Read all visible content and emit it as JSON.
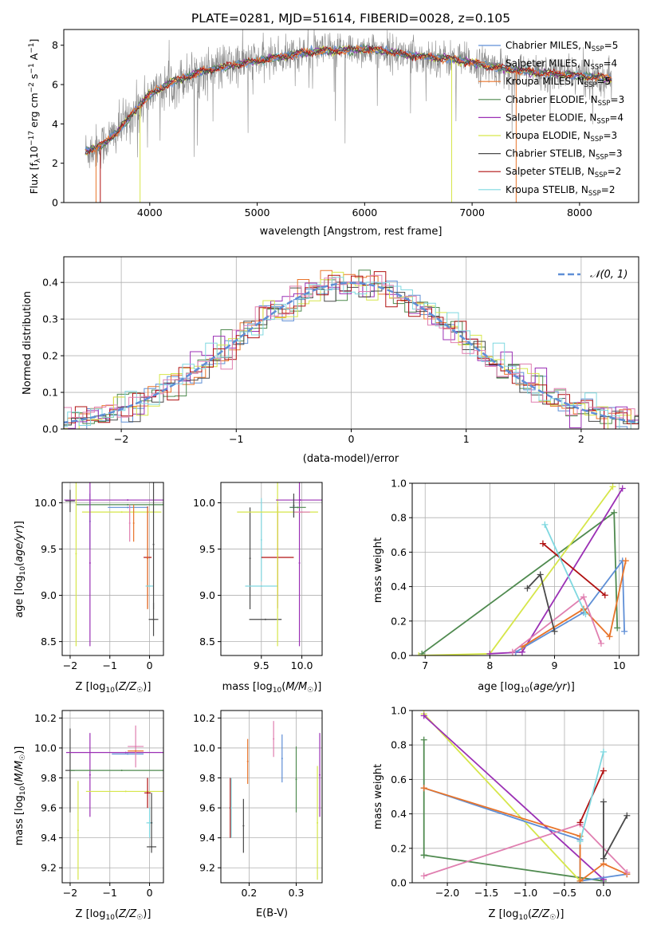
{
  "colors": {
    "chabrier_miles": "#5f8fd6",
    "salpeter_miles": "#8a8a8a",
    "kroupa_miles": "#e8742a",
    "chabrier_elodie": "#4f8a4f",
    "salpeter_elodie": "#9b30b5",
    "kroupa_elodie": "#d6e64a",
    "chabrier_stelib": "#4a4a4a",
    "salpeter_stelib": "#b01010",
    "kroupa_stelib": "#7fd8e0",
    "pink": "#e07fb0",
    "normal_curve": "#5f8fd6"
  },
  "chart_data": [
    {
      "id": "spectrum",
      "type": "line",
      "title": "PLATE=0281, MJD=51614, FIBERID=0028, z=0.105",
      "xlabel": "wavelength [Angstrom, rest frame]",
      "ylabel": "Flux [f_λ10^-17 erg cm^-2 s^-1 A^-1]",
      "xlim": [
        3200,
        8550
      ],
      "ylim": [
        0,
        8.8
      ],
      "xticks": [
        "4000",
        "5000",
        "6000",
        "7000",
        "8000"
      ],
      "yticks": [
        "0",
        "2",
        "4",
        "6",
        "8"
      ],
      "legend_position": "top-right",
      "legend": [
        "Chabrier MILES, N_SSP=5",
        "Salpeter MILES, N_SSP=4",
        "Kroupa MILES, N_SSP=5",
        "Chabrier ELODIE, N_SSP=3",
        "Salpeter ELODIE, N_SSP=4",
        "Kroupa ELODIE, N_SSP=3",
        "Chabrier STELIB, N_SSP=3",
        "Salpeter STELIB, N_SSP=2",
        "Kroupa STELIB, N_SSP=2"
      ],
      "continuum": {
        "x": [
          3400,
          3550,
          3700,
          3850,
          4000,
          4200,
          4400,
          4600,
          4800,
          5000,
          5200,
          5400,
          5600,
          5800,
          6000,
          6200,
          6400,
          6600,
          6800,
          7000,
          7200,
          7400,
          7600,
          7800,
          8000,
          8200,
          8300
        ],
        "y": [
          2.6,
          2.9,
          3.6,
          4.6,
          5.5,
          6.1,
          6.5,
          6.8,
          7.0,
          7.2,
          7.4,
          7.6,
          7.7,
          7.75,
          7.8,
          7.7,
          7.5,
          7.4,
          7.3,
          7.1,
          6.9,
          6.75,
          6.6,
          6.55,
          6.45,
          6.35,
          6.3
        ]
      }
    },
    {
      "id": "residuals",
      "type": "line",
      "xlabel": "(data-model)/error",
      "ylabel": "Normed distribution",
      "xlim": [
        -2.5,
        2.5
      ],
      "ylim": [
        0,
        0.47
      ],
      "xticks": [
        "−2",
        "−1",
        "0",
        "1",
        "2"
      ],
      "yticks": [
        "0.0",
        "0.1",
        "0.2",
        "0.3",
        "0.4"
      ],
      "legend": [
        "𝒩(0, 1)"
      ],
      "legend_position": "top-right",
      "normal_mean": 0,
      "normal_sigma": 1
    },
    {
      "id": "age_vs_z",
      "type": "scatter",
      "xlabel": "Z [log10(Z/Z☉)]",
      "ylabel": "age  [log10(age/yr)]",
      "xlim": [
        -2.2,
        0.35
      ],
      "ylim": [
        8.35,
        10.22
      ],
      "xticks": [
        "−2",
        "−1",
        "0"
      ],
      "yticks": [
        "8.5",
        "9.0",
        "9.5",
        "10.0"
      ],
      "points": [
        {
          "x": -2.0,
          "y": 10.02,
          "xerr": 0.12,
          "yerr": 0.12,
          "c": "chabrier_stelib"
        },
        {
          "x": -1.5,
          "y": 9.8,
          "xerr": 0.0,
          "yerr": 0.3,
          "c": "chabrier_miles"
        },
        {
          "x": -0.55,
          "y": 10.03,
          "xerr": 1.6,
          "yerr": 0.0,
          "c": "salpeter_elodie"
        },
        {
          "x": -0.55,
          "y": 9.98,
          "xerr": 1.3,
          "yerr": 0.0,
          "c": "chabrier_elodie"
        },
        {
          "x": -0.55,
          "y": 9.95,
          "xerr": 0.5,
          "yerr": 0.0,
          "c": "chabrier_miles"
        },
        {
          "x": -1.85,
          "y": 9.45,
          "xerr": 0.0,
          "yerr": 1.0,
          "c": "kroupa_elodie"
        },
        {
          "x": -0.7,
          "y": 9.9,
          "xerr": 1.0,
          "yerr": 0.0,
          "c": "kroupa_elodie"
        },
        {
          "x": -1.5,
          "y": 9.35,
          "xerr": 0.0,
          "yerr": 0.9,
          "c": "salpeter_elodie"
        },
        {
          "x": -0.5,
          "y": 9.78,
          "xerr": 0.0,
          "yerr": 0.2,
          "c": "pink"
        },
        {
          "x": -0.4,
          "y": 9.78,
          "xerr": 0.0,
          "yerr": 0.2,
          "c": "kroupa_miles"
        },
        {
          "x": -0.05,
          "y": 9.41,
          "xerr": 0.1,
          "yerr": 0.55,
          "c": "salpeter_stelib"
        },
        {
          "x": -0.05,
          "y": 9.4,
          "xerr": 0.0,
          "yerr": 0.55,
          "c": "kroupa_miles"
        },
        {
          "x": 0.0,
          "y": 9.1,
          "xerr": 0.1,
          "yerr": 0.0,
          "c": "kroupa_stelib"
        },
        {
          "x": 0.1,
          "y": 8.74,
          "xerr": 0.12,
          "yerr": 0.18,
          "c": "chabrier_stelib"
        },
        {
          "x": 0.1,
          "y": 9.55,
          "xerr": 0.0,
          "yerr": 0.7,
          "c": "chabrier_stelib"
        }
      ]
    },
    {
      "id": "age_vs_mass",
      "type": "scatter",
      "xlabel": "mass [log10(M/M☉)]",
      "xlim": [
        9.0,
        10.25
      ],
      "ylim": [
        8.35,
        10.22
      ],
      "xticks": [
        "9.5",
        "10.0"
      ],
      "yticks": [
        "8.5",
        "9.0",
        "9.5",
        "10.0"
      ],
      "points": [
        {
          "x": 9.55,
          "y": 8.74,
          "xerr": 0.2,
          "yerr": 0.0,
          "c": "chabrier_stelib"
        },
        {
          "x": 9.36,
          "y": 9.4,
          "xerr": 0.0,
          "yerr": 0.55,
          "c": "chabrier_stelib"
        },
        {
          "x": 9.5,
          "y": 9.1,
          "xerr": 0.2,
          "yerr": 0.0,
          "c": "kroupa_stelib"
        },
        {
          "x": 9.5,
          "y": 9.6,
          "xerr": 0.0,
          "yerr": 0.45,
          "c": "kroupa_stelib"
        },
        {
          "x": 9.7,
          "y": 9.41,
          "xerr": 0.2,
          "yerr": 0.55,
          "c": "salpeter_stelib"
        },
        {
          "x": 9.7,
          "y": 9.5,
          "xerr": 0.0,
          "yerr": 0.5,
          "c": "kroupa_miles"
        },
        {
          "x": 9.7,
          "y": 9.9,
          "xerr": 0.5,
          "yerr": 0.0,
          "c": "kroupa_elodie"
        },
        {
          "x": 9.7,
          "y": 9.45,
          "xerr": 0.0,
          "yerr": 1.0,
          "c": "kroupa_elodie"
        },
        {
          "x": 9.98,
          "y": 10.03,
          "xerr": 0.3,
          "yerr": 0.0,
          "c": "salpeter_elodie"
        },
        {
          "x": 9.97,
          "y": 9.35,
          "xerr": 0.0,
          "yerr": 0.9,
          "c": "salpeter_elodie"
        },
        {
          "x": 9.9,
          "y": 9.95,
          "xerr": 0.05,
          "yerr": 0.1,
          "c": "chabrier_miles"
        },
        {
          "x": 9.95,
          "y": 9.95,
          "xerr": 0.1,
          "yerr": 0.0,
          "c": "chabrier_elodie"
        },
        {
          "x": 10.0,
          "y": 9.9,
          "xerr": 0.1,
          "yerr": 0.0,
          "c": "pink"
        },
        {
          "x": 9.9,
          "y": 9.97,
          "xerr": 0.0,
          "yerr": 0.13,
          "c": "chabrier_stelib"
        }
      ]
    },
    {
      "id": "weight_vs_age",
      "type": "line",
      "xlabel": "age  [log10(age/yr)]",
      "ylabel": "mass weight",
      "xlim": [
        6.8,
        10.3
      ],
      "ylim": [
        0,
        1.0
      ],
      "xticks": [
        "7",
        "8",
        "9",
        "10"
      ],
      "yticks": [
        "0.0",
        "0.2",
        "0.4",
        "0.6",
        "0.8",
        "1.0"
      ],
      "series": [
        {
          "c": "chabrier_elodie",
          "x": [
            6.95,
            9.92,
            9.97
          ],
          "y": [
            0.01,
            0.83,
            0.16
          ]
        },
        {
          "c": "kroupa_elodie",
          "x": [
            6.9,
            8.0,
            9.9
          ],
          "y": [
            0.0,
            0.01,
            0.98
          ]
        },
        {
          "c": "salpeter_elodie",
          "x": [
            8.0,
            8.5,
            10.05
          ],
          "y": [
            0.01,
            0.02,
            0.97
          ]
        },
        {
          "c": "chabrier_miles",
          "x": [
            8.4,
            9.45,
            10.05,
            10.08
          ],
          "y": [
            0.02,
            0.25,
            0.55,
            0.14
          ]
        },
        {
          "c": "kroupa_miles",
          "x": [
            8.5,
            9.45,
            9.85,
            10.1
          ],
          "y": [
            0.05,
            0.27,
            0.11,
            0.55
          ]
        },
        {
          "c": "pink",
          "x": [
            8.35,
            9.45,
            9.72
          ],
          "y": [
            0.02,
            0.34,
            0.07
          ]
        },
        {
          "c": "salpeter_stelib",
          "x": [
            8.82,
            9.78
          ],
          "y": [
            0.65,
            0.35
          ]
        },
        {
          "c": "kroupa_stelib",
          "x": [
            8.85,
            9.48
          ],
          "y": [
            0.76,
            0.24
          ]
        },
        {
          "c": "chabrier_stelib",
          "x": [
            8.58,
            8.78,
            9.0
          ],
          "y": [
            0.39,
            0.47,
            0.14
          ]
        }
      ]
    },
    {
      "id": "mass_vs_z",
      "type": "scatter",
      "xlabel": "Z [log10(Z/Z☉)]",
      "ylabel": "mass [log10(M/M☉)]",
      "xlim": [
        -2.2,
        0.35
      ],
      "ylim": [
        9.1,
        10.25
      ],
      "xticks": [
        "−2",
        "−1",
        "0"
      ],
      "yticks": [
        "9.2",
        "9.4",
        "9.6",
        "9.8",
        "10.0",
        "10.2"
      ],
      "points": [
        {
          "x": -2.0,
          "y": 9.85,
          "xerr": 0.12,
          "yerr": 0.28,
          "c": "chabrier_stelib"
        },
        {
          "x": -1.5,
          "y": 9.82,
          "xerr": 0.0,
          "yerr": 0.28,
          "c": "salpeter_elodie"
        },
        {
          "x": -0.6,
          "y": 9.97,
          "xerr": 1.5,
          "yerr": 0.0,
          "c": "salpeter_elodie"
        },
        {
          "x": -0.7,
          "y": 9.85,
          "xerr": 1.3,
          "yerr": 0.0,
          "c": "chabrier_elodie"
        },
        {
          "x": -0.55,
          "y": 9.96,
          "xerr": 0.4,
          "yerr": 0.0,
          "c": "chabrier_miles"
        },
        {
          "x": -0.6,
          "y": 9.71,
          "xerr": 1.0,
          "yerr": 0.0,
          "c": "kroupa_elodie"
        },
        {
          "x": -1.8,
          "y": 9.45,
          "xerr": 0.0,
          "yerr": 0.33,
          "c": "kroupa_elodie"
        },
        {
          "x": -0.35,
          "y": 10.01,
          "xerr": 0.2,
          "yerr": 0.14,
          "c": "pink"
        },
        {
          "x": -0.35,
          "y": 9.98,
          "xerr": 0.2,
          "yerr": 0.0,
          "c": "kroupa_miles"
        },
        {
          "x": -0.05,
          "y": 9.7,
          "xerr": 0.08,
          "yerr": 0.1,
          "c": "salpeter_stelib"
        },
        {
          "x": 0.0,
          "y": 9.5,
          "xerr": 0.08,
          "yerr": 0.1,
          "c": "kroupa_stelib"
        },
        {
          "x": 0.05,
          "y": 9.34,
          "xerr": 0.12,
          "yerr": 0.0,
          "c": "chabrier_stelib"
        },
        {
          "x": 0.05,
          "y": 9.5,
          "xerr": 0.0,
          "yerr": 0.2,
          "c": "chabrier_stelib"
        }
      ]
    },
    {
      "id": "mass_vs_ebv",
      "type": "scatter",
      "xlabel": "E(B-V)",
      "xlim": [
        0.14,
        0.355
      ],
      "ylim": [
        9.1,
        10.25
      ],
      "xticks": [
        "0.2",
        "0.3"
      ],
      "yticks": [
        "9.2",
        "9.4",
        "9.6",
        "9.8",
        "10.0",
        "10.2"
      ],
      "points": [
        {
          "x": 0.16,
          "y": 9.6,
          "xerr": 0.0,
          "yerr": 0.2,
          "c": "salpeter_stelib"
        },
        {
          "x": 0.162,
          "y": 9.6,
          "xerr": 0.0,
          "yerr": 0.2,
          "c": "kroupa_stelib"
        },
        {
          "x": 0.188,
          "y": 9.48,
          "xerr": 0.0,
          "yerr": 0.18,
          "c": "chabrier_stelib"
        },
        {
          "x": 0.197,
          "y": 9.91,
          "xerr": 0.0,
          "yerr": 0.15,
          "c": "kroupa_miles"
        },
        {
          "x": 0.252,
          "y": 10.06,
          "xerr": 0.0,
          "yerr": 0.12,
          "c": "pink"
        },
        {
          "x": 0.27,
          "y": 9.93,
          "xerr": 0.0,
          "yerr": 0.16,
          "c": "chabrier_miles"
        },
        {
          "x": 0.3,
          "y": 9.79,
          "xerr": 0.0,
          "yerr": 0.22,
          "c": "chabrier_elodie"
        },
        {
          "x": 0.345,
          "y": 9.5,
          "xerr": 0.0,
          "yerr": 0.38,
          "c": "kroupa_elodie"
        },
        {
          "x": 0.35,
          "y": 9.82,
          "xerr": 0.0,
          "yerr": 0.28,
          "c": "salpeter_elodie"
        }
      ]
    },
    {
      "id": "weight_vs_z",
      "type": "line",
      "xlabel": "Z [log10(Z/Z☉)]",
      "ylabel": "mass weight",
      "xlim": [
        -2.45,
        0.45
      ],
      "ylim": [
        0,
        1.0
      ],
      "xticks": [
        "−2.0",
        "−1.5",
        "−1.0",
        "−0.5",
        "0.0"
      ],
      "yticks": [
        "0.0",
        "0.2",
        "0.4",
        "0.6",
        "0.8",
        "1.0"
      ],
      "series": [
        {
          "c": "chabrier_elodie",
          "x": [
            -2.3,
            -2.3,
            -2.3,
            0.0
          ],
          "y": [
            0.83,
            0.16,
            0.16,
            0.01
          ]
        },
        {
          "c": "kroupa_elodie",
          "x": [
            -2.3,
            -0.3,
            -0.3
          ],
          "y": [
            0.98,
            0.01,
            0.01
          ]
        },
        {
          "c": "salpeter_elodie",
          "x": [
            -2.3,
            0.0
          ],
          "y": [
            0.97,
            0.02
          ]
        },
        {
          "c": "chabrier_miles",
          "x": [
            -2.3,
            -0.3,
            -0.3,
            0.3
          ],
          "y": [
            0.55,
            0.25,
            0.01,
            0.05
          ]
        },
        {
          "c": "kroupa_miles",
          "x": [
            -2.3,
            -0.3,
            -0.3,
            0.0,
            0.3
          ],
          "y": [
            0.55,
            0.27,
            0.01,
            0.11,
            0.05
          ]
        },
        {
          "c": "pink",
          "x": [
            -2.3,
            -0.3,
            0.3
          ],
          "y": [
            0.04,
            0.34,
            0.06
          ]
        },
        {
          "c": "salpeter_stelib",
          "x": [
            -0.3,
            0.0
          ],
          "y": [
            0.35,
            0.65
          ]
        },
        {
          "c": "kroupa_stelib",
          "x": [
            -0.3,
            0.0
          ],
          "y": [
            0.24,
            0.76
          ]
        },
        {
          "c": "chabrier_stelib",
          "x": [
            0.0,
            0.0,
            0.3
          ],
          "y": [
            0.47,
            0.14,
            0.39
          ]
        }
      ]
    }
  ]
}
